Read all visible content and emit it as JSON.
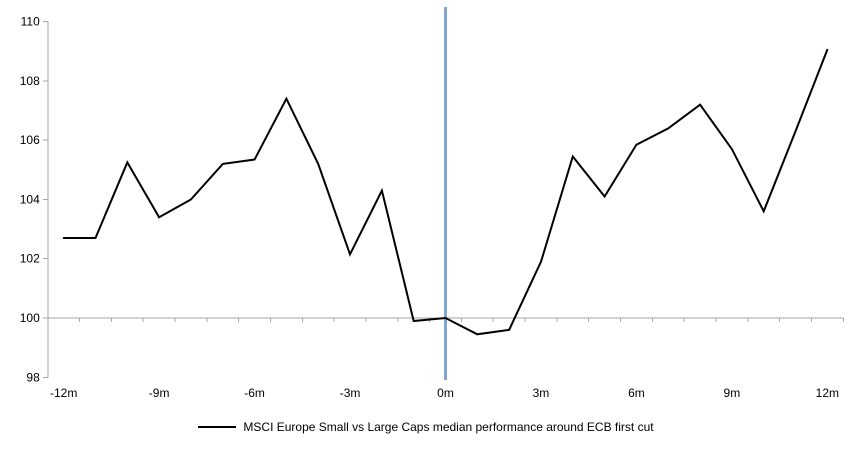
{
  "legend": {
    "label": "MSCI Europe Small vs Large Caps median performance around ECB first cut"
  },
  "chart_data": {
    "type": "line",
    "title": "",
    "xlabel": "",
    "ylabel": "",
    "x": [
      -12,
      -11,
      -10,
      -9,
      -8,
      -7,
      -6,
      -5,
      -4,
      -3,
      -2,
      -1,
      0,
      1,
      2,
      3,
      4,
      5,
      6,
      7,
      8,
      9,
      10,
      11,
      12
    ],
    "series": [
      {
        "name": "MSCI Europe Small vs Large Caps median performance around ECB first cut",
        "values": [
          102.7,
          102.7,
          105.25,
          103.4,
          104.0,
          105.2,
          105.35,
          107.4,
          105.2,
          102.15,
          104.3,
          99.9,
          100.0,
          99.45,
          99.6,
          101.9,
          105.45,
          104.1,
          105.85,
          106.4,
          107.2,
          105.7,
          103.6,
          106.3,
          109.05
        ]
      }
    ],
    "x_tick_labels": [
      "-12m",
      "-9m",
      "-6m",
      "-3m",
      "0m",
      "3m",
      "6m",
      "9m",
      "12m"
    ],
    "x_tick_positions": [
      -12,
      -9,
      -6,
      -3,
      0,
      3,
      6,
      9,
      12
    ],
    "y_ticks": [
      98,
      100,
      102,
      104,
      106,
      108,
      110
    ],
    "ylim": [
      98,
      110
    ],
    "xlim": [
      -12.5,
      12.5
    ],
    "baseline": 100,
    "event_line_x": 0,
    "grid": false,
    "legend_position": "bottom",
    "colors": {
      "series": "#000000",
      "event_line": "#7EA6D0",
      "axis": "#A6A6A6"
    }
  }
}
